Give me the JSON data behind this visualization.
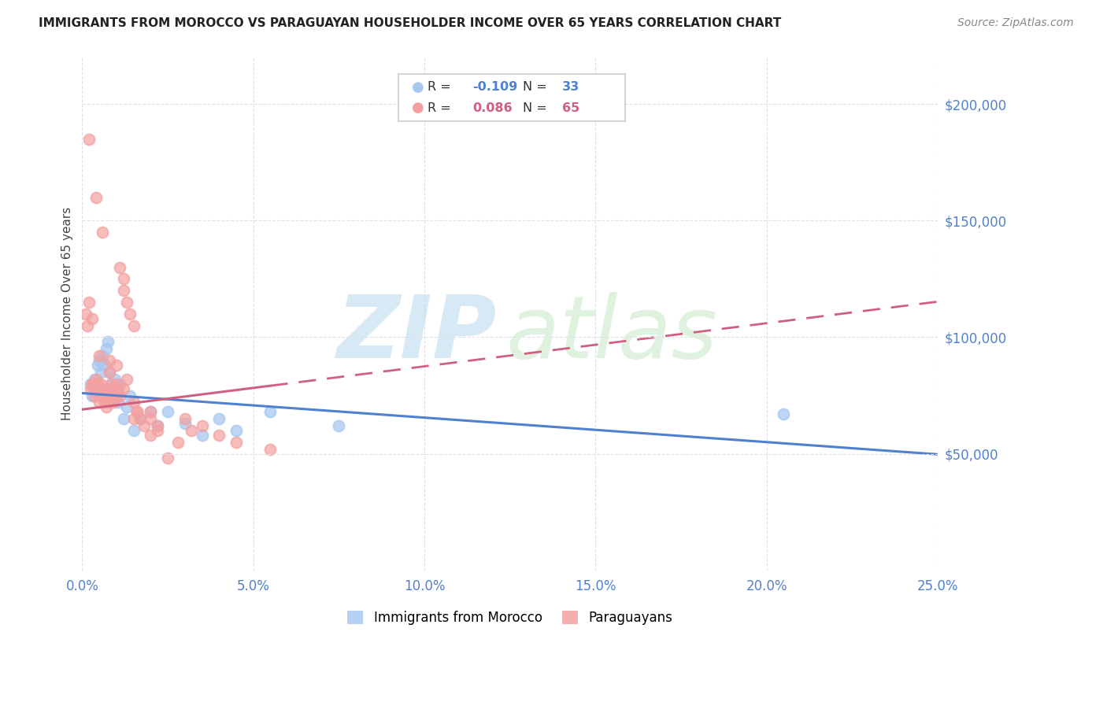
{
  "title": "IMMIGRANTS FROM MOROCCO VS PARAGUAYAN HOUSEHOLDER INCOME OVER 65 YEARS CORRELATION CHART",
  "source": "Source: ZipAtlas.com",
  "ylabel": "Householder Income Over 65 years",
  "xlabel_ticks": [
    "0.0%",
    "5.0%",
    "10.0%",
    "15.0%",
    "20.0%",
    "25.0%"
  ],
  "xlabel_vals": [
    0.0,
    5.0,
    10.0,
    15.0,
    20.0,
    25.0
  ],
  "ytick_labels": [
    "$50,000",
    "$100,000",
    "$150,000",
    "$200,000"
  ],
  "ytick_vals": [
    50000,
    100000,
    150000,
    200000
  ],
  "legend1_label": "Immigrants from Morocco",
  "legend2_label": "Paraguayans",
  "r1": "-0.109",
  "n1": "33",
  "r2": "0.086",
  "n2": "65",
  "color_blue": "#a8c8f0",
  "color_pink": "#f4a0a0",
  "color_blue_line": "#5080d0",
  "color_pink_line": "#d06080",
  "color_blue_text": "#5080d0",
  "color_pink_text": "#d06080",
  "color_axis_label": "#5080d0",
  "xlim": [
    0.0,
    25.0
  ],
  "ylim": [
    0,
    220000
  ],
  "blue_x": [
    0.25,
    0.3,
    0.35,
    0.4,
    0.45,
    0.5,
    0.55,
    0.6,
    0.65,
    0.7,
    0.75,
    0.8,
    0.85,
    0.9,
    0.95,
    1.0,
    1.05,
    1.1,
    1.2,
    1.3,
    1.4,
    1.5,
    1.7,
    2.0,
    2.2,
    2.5,
    3.0,
    3.5,
    4.0,
    4.5,
    5.5,
    7.5,
    20.5
  ],
  "blue_y": [
    80000,
    75000,
    82000,
    78000,
    88000,
    90000,
    85000,
    92000,
    88000,
    95000,
    98000,
    85000,
    80000,
    78000,
    82000,
    75000,
    72000,
    80000,
    65000,
    70000,
    75000,
    60000,
    65000,
    68000,
    62000,
    68000,
    63000,
    58000,
    65000,
    60000,
    68000,
    62000,
    67000
  ],
  "pink_x": [
    0.1,
    0.15,
    0.2,
    0.25,
    0.3,
    0.3,
    0.35,
    0.4,
    0.4,
    0.45,
    0.5,
    0.5,
    0.5,
    0.55,
    0.6,
    0.6,
    0.65,
    0.7,
    0.7,
    0.75,
    0.8,
    0.8,
    0.85,
    0.9,
    0.9,
    0.95,
    1.0,
    1.0,
    1.05,
    1.1,
    1.1,
    1.2,
    1.2,
    1.3,
    1.4,
    1.5,
    1.5,
    1.6,
    1.7,
    1.8,
    2.0,
    2.0,
    2.2,
    2.5,
    2.8,
    3.0,
    3.5,
    4.0,
    4.5,
    5.5,
    0.2,
    0.4,
    0.6,
    0.8,
    1.0,
    1.3,
    1.6,
    2.2,
    0.3,
    0.5,
    0.8,
    1.2,
    1.5,
    2.0,
    3.2
  ],
  "pink_y": [
    110000,
    105000,
    115000,
    78000,
    108000,
    80000,
    75000,
    78000,
    82000,
    80000,
    75000,
    78000,
    72000,
    80000,
    75000,
    78000,
    72000,
    75000,
    70000,
    78000,
    75000,
    72000,
    80000,
    75000,
    72000,
    78000,
    80000,
    75000,
    78000,
    75000,
    130000,
    125000,
    120000,
    115000,
    110000,
    105000,
    72000,
    68000,
    65000,
    62000,
    68000,
    65000,
    60000,
    48000,
    55000,
    65000,
    62000,
    58000,
    55000,
    52000,
    185000,
    160000,
    145000,
    90000,
    88000,
    82000,
    68000,
    62000,
    80000,
    92000,
    85000,
    78000,
    65000,
    58000,
    60000
  ]
}
